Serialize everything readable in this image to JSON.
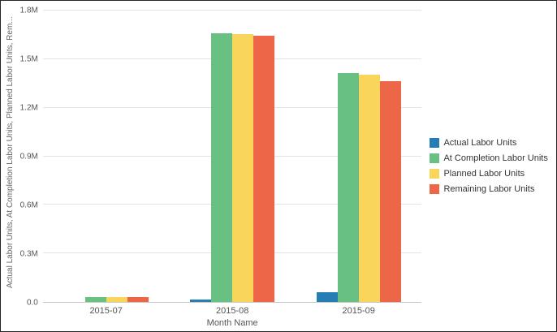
{
  "chart_data": {
    "type": "bar",
    "title": "",
    "xlabel": "Month Name",
    "ylabel": "Actual Labor Units, At Completion Labor Units, Planned Labor Units, Rem...",
    "categories": [
      "2015-07",
      "2015-08",
      "2015-09"
    ],
    "series": [
      {
        "name": "Actual Labor Units",
        "color": "#267db3",
        "values": [
          0,
          15000,
          60000
        ]
      },
      {
        "name": "At Completion Labor Units",
        "color": "#68c182",
        "values": [
          28000,
          1660000,
          1415000
        ]
      },
      {
        "name": "Planned Labor Units",
        "color": "#fad55c",
        "values": [
          28000,
          1655000,
          1405000
        ]
      },
      {
        "name": "Remaining Labor Units",
        "color": "#ed6647",
        "values": [
          28000,
          1645000,
          1365000
        ]
      }
    ],
    "ylim": [
      0,
      1800000
    ],
    "yticks": [
      {
        "v": 0,
        "label": "0.0"
      },
      {
        "v": 300000,
        "label": "0.3M"
      },
      {
        "v": 600000,
        "label": "0.6M"
      },
      {
        "v": 900000,
        "label": "0.9M"
      },
      {
        "v": 1200000,
        "label": "1.2M"
      },
      {
        "v": 1500000,
        "label": "1.5M"
      },
      {
        "v": 1800000,
        "label": "1.8M"
      }
    ],
    "grid": true,
    "legend_position": "right"
  }
}
